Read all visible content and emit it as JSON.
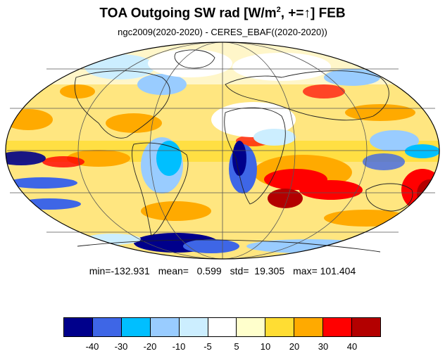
{
  "title": {
    "main": "TOA Outgoing SW rad [W/m",
    "sup": "2",
    "tail": ", +=↑] FEB"
  },
  "subtitle": "ngc2009(2020-2020) - CERES_EBAF((2020-2020))",
  "stats": {
    "min": "min=-132.931",
    "mean": "mean=   0.599",
    "std": "std=  19.305",
    "max": "max= 101.404"
  },
  "colorbar": {
    "colors": [
      "#00008b",
      "#3e66e6",
      "#00bfff",
      "#99ccff",
      "#cceeff",
      "#ffffff",
      "#ffffcc",
      "#ffdd33",
      "#ffaa00",
      "#ff0000",
      "#b30000"
    ],
    "labels": [
      "-40",
      "-30",
      "-20",
      "-10",
      "-5",
      "5",
      "10",
      "20",
      "30",
      "40"
    ]
  }
}
